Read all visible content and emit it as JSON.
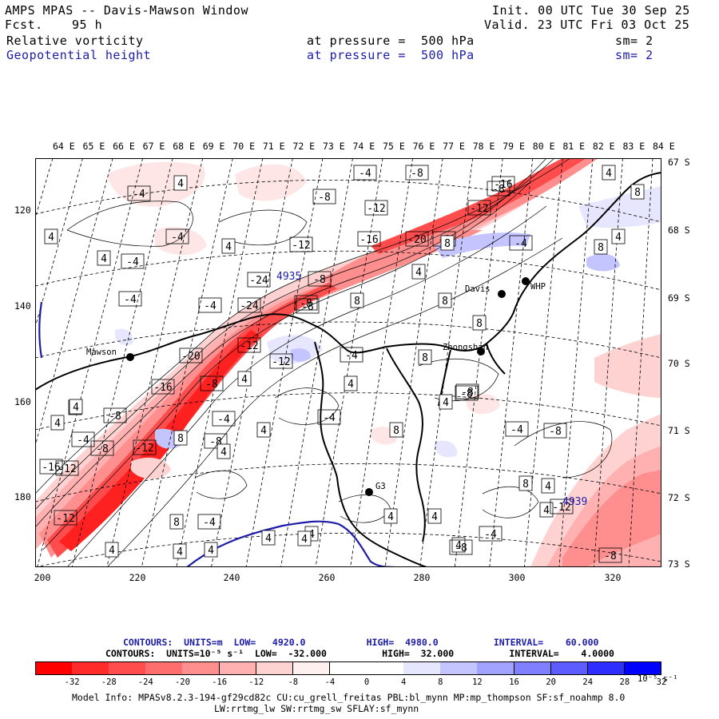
{
  "header": {
    "title": "AMPS MPAS -- Davis-Mawson Window",
    "fcst_label": "Fcst.",
    "fcst_hours": "95 h",
    "init": "Init. 00 UTC Tue 30 Sep 25",
    "valid": "Valid. 23 UTC Fri 03 Oct 25",
    "field1_name": "Relative vorticity",
    "field1_level": "at pressure =  500 hPa",
    "field1_smooth": "sm= 2",
    "field2_name": "Geopotential height",
    "field2_level": "at pressure =  500 hPa",
    "field2_smooth": "sm= 2"
  },
  "map": {
    "longitude_labels": [
      "64 E",
      "65 E",
      "66 E",
      "67 E",
      "68 E",
      "69 E",
      "70 E",
      "71 E",
      "72 E",
      "73 E",
      "74 E",
      "75 E",
      "76 E",
      "77 E",
      "78 E",
      "79 E",
      "80 E",
      "81 E",
      "82 E",
      "83 E",
      "84 E"
    ],
    "latitude_labels": [
      "67 S",
      "68 S",
      "69 S",
      "70 S",
      "71 S",
      "72 S",
      "73 S"
    ],
    "y_ticks": [
      "120",
      "140",
      "160",
      "180"
    ],
    "x_ticks": [
      "200",
      "220",
      "240",
      "260",
      "280",
      "300",
      "320"
    ],
    "stations": [
      {
        "name": "Mawson"
      },
      {
        "name": "Davis"
      },
      {
        "name": "WHP"
      },
      {
        "name": "Zhongshan"
      },
      {
        "name": "G3"
      }
    ],
    "height_labels": [
      "4935",
      "4939"
    ],
    "vorticity_labels": [
      "-4",
      "4",
      "-4",
      "4",
      "-4",
      "4",
      "4",
      "-4",
      "4",
      "-8",
      "-4",
      "-8",
      "-12",
      "-8",
      "-12",
      "-16",
      "-20",
      "-8",
      "-16",
      "-12",
      "-4",
      "8",
      "4",
      "8",
      "8",
      "4",
      "-24",
      "-8",
      "-8",
      "-4",
      "-24",
      "-8",
      "8",
      "8",
      "4",
      "8",
      "-12",
      "-12",
      "8",
      "-20",
      "-8",
      "4",
      "-4",
      "4",
      "-8",
      "-4",
      "4",
      "-16",
      "-8",
      "-4",
      "4",
      "4",
      "-12",
      "8",
      "-4",
      "-8",
      "-4",
      "-8",
      "4",
      "8",
      "4",
      "4",
      "4",
      "4",
      "4",
      "-8",
      "-12",
      "-8",
      "4",
      "-12",
      "-16",
      "8",
      "4",
      "4",
      "-4",
      "8",
      "-8",
      "4",
      "-12",
      "4",
      "4",
      "-4",
      "4",
      "-8"
    ]
  },
  "colorbar": {
    "contour_line1": "CONTOURS:  UNITS=m  LOW=   4920.0           HIGH=  4980.0          INTERVAL=    60.000",
    "contour_line2": "CONTOURS:  UNITS=10⁻⁵ s⁻¹  LOW=  -32.000          HIGH=  32.000          INTERVAL=    4.0000",
    "tick_labels": [
      "-32",
      "-28",
      "-24",
      "-20",
      "-16",
      "-12",
      "-8",
      "-4",
      "0",
      "4",
      "8",
      "12",
      "16",
      "20",
      "24",
      "28",
      "32",
      "10⁻⁵ s⁻¹"
    ],
    "colors": [
      "#ff0000",
      "#ff2a2a",
      "#ff4d4d",
      "#ff6e6e",
      "#ff8f8f",
      "#ffb0b0",
      "#ffd2d2",
      "#fff0f0",
      "#ffffff",
      "#ffffff",
      "#e6e6ff",
      "#c4c4ff",
      "#a2a2ff",
      "#8080ff",
      "#5c5cff",
      "#2e2eff",
      "#0000ff"
    ]
  },
  "footer": {
    "model_info": "Model Info: MPASv8.2.3-194-gf29cd82c CU:cu_grell_freitas PBL:bl_mynn MP:mp_thompson SF:sf_noahmp 8.0",
    "physics": "LW:rrtmg_lw SW:rrtmg_sw SFLAY:sf_mynn"
  }
}
